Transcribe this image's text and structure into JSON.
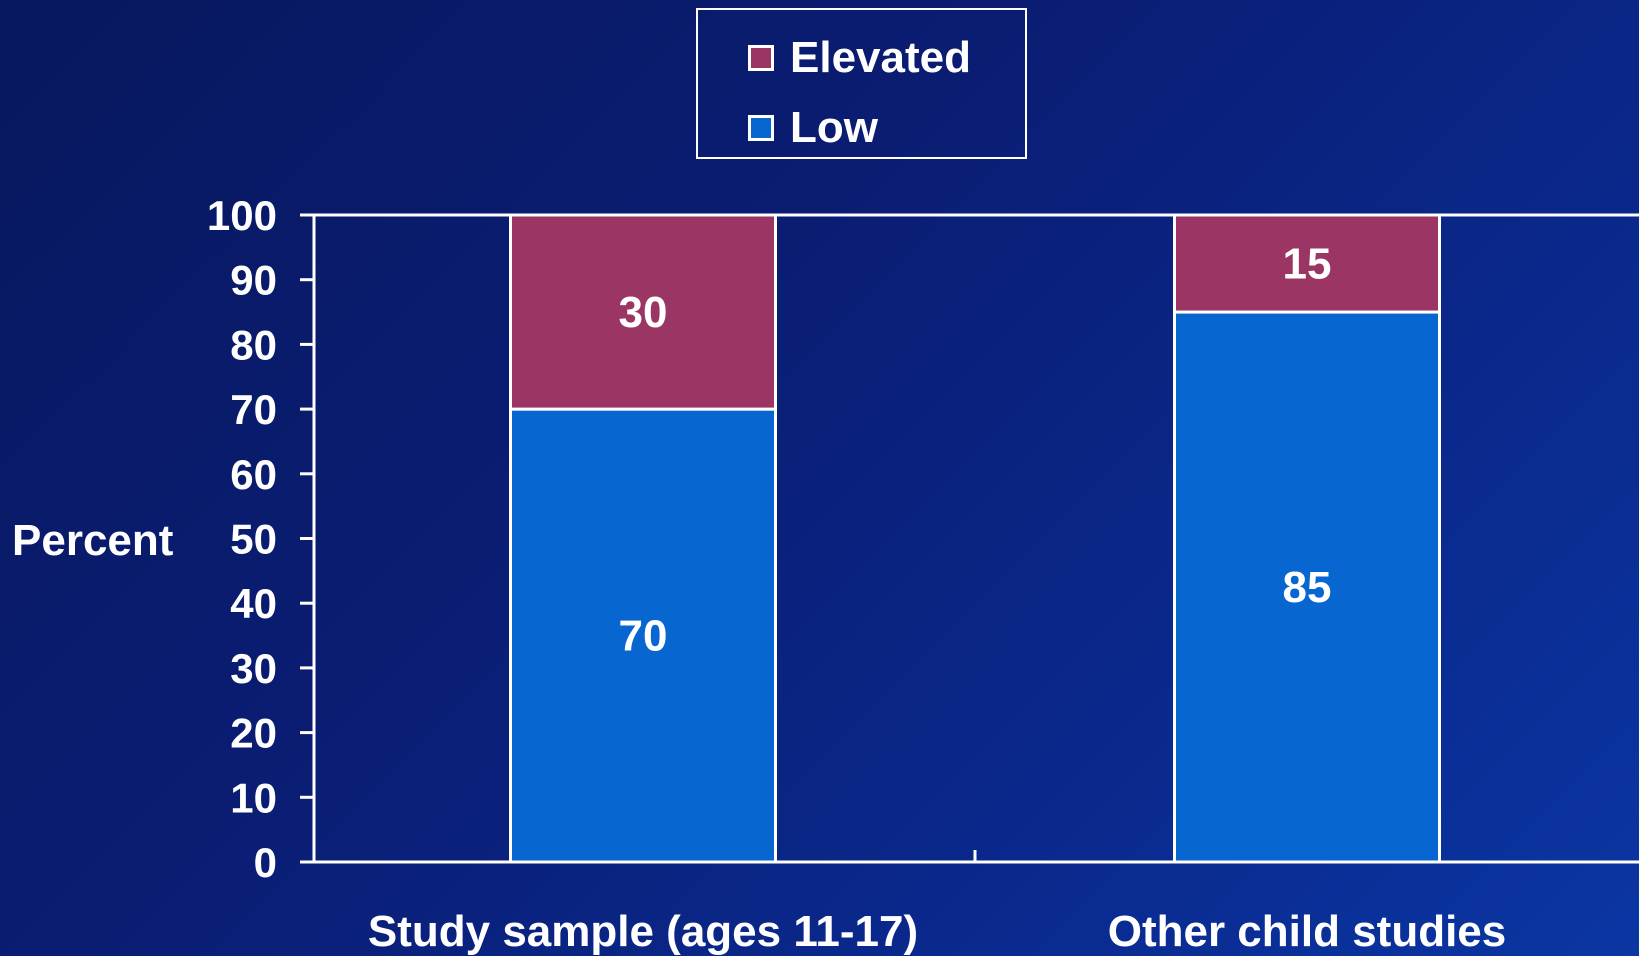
{
  "chart_data": {
    "type": "bar",
    "stacked": true,
    "categories": [
      "Study sample (ages 11-17)",
      "Other child studies"
    ],
    "series": [
      {
        "name": "Low",
        "values": [
          70,
          85
        ],
        "color": "#0766d0"
      },
      {
        "name": "Elevated",
        "values": [
          30,
          15
        ],
        "color": "#9a3564"
      }
    ],
    "ylabel": "Percent",
    "xlabel": "",
    "ylim": [
      0,
      100
    ],
    "yticks": [
      0,
      10,
      20,
      30,
      40,
      50,
      60,
      70,
      80,
      90,
      100
    ],
    "grid": false,
    "legend": {
      "position": "top-center",
      "order": [
        "Elevated",
        "Low"
      ]
    }
  },
  "colors": {
    "background": "#0a1d73",
    "axis": "#ffffff",
    "text": "#ffffff"
  }
}
